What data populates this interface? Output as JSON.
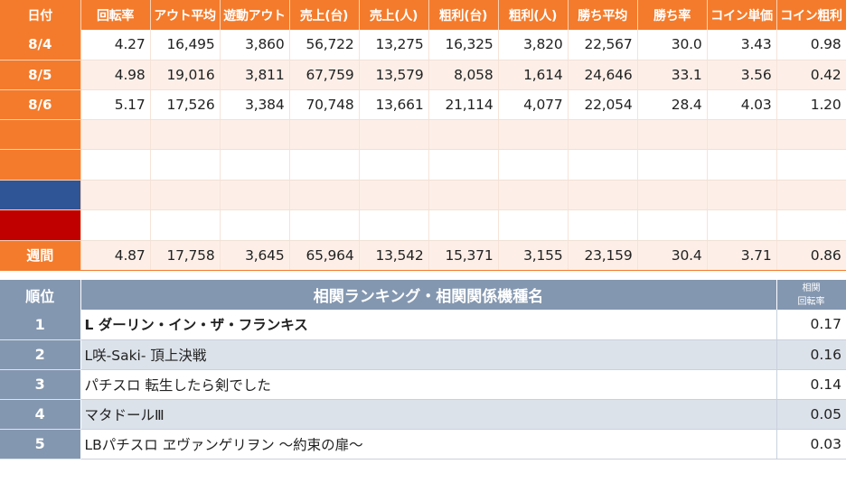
{
  "stats": {
    "headers": [
      "日付",
      "回転率",
      "アウト平均",
      "遊動アウト",
      "売上(台)",
      "売上(人)",
      "粗利(台)",
      "粗利(人)",
      "勝ち平均",
      "勝ち率",
      "コイン単価",
      "コイン粗利"
    ],
    "rows": [
      {
        "label": "8/4",
        "values": [
          "4.27",
          "16,495",
          "3,860",
          "56,722",
          "13,275",
          "16,325",
          "3,820",
          "22,567",
          "30.0",
          "3.43",
          "0.98"
        ]
      },
      {
        "label": "8/5",
        "values": [
          "4.98",
          "19,016",
          "3,811",
          "67,759",
          "13,579",
          "8,058",
          "1,614",
          "24,646",
          "33.1",
          "3.56",
          "0.42"
        ]
      },
      {
        "label": "8/6",
        "values": [
          "5.17",
          "17,526",
          "3,384",
          "70,748",
          "13,661",
          "21,114",
          "4,077",
          "22,054",
          "28.4",
          "4.03",
          "1.20"
        ]
      }
    ],
    "empty_row_colors": [
      "#f47b2b",
      "#f47b2b",
      "#2f5597",
      "#c00000"
    ],
    "total": {
      "label": "週間",
      "values": [
        "4.87",
        "17,758",
        "3,645",
        "65,964",
        "13,542",
        "15,371",
        "3,155",
        "23,159",
        "30.4",
        "3.71",
        "0.86"
      ]
    },
    "accent_color": "#f47b2b"
  },
  "ranking": {
    "header_rank": "順位",
    "header_title": "相関ランキング・相関関係機種名",
    "header_corr_line1": "相関",
    "header_corr_line2": "回転率",
    "rows": [
      {
        "rank": "1",
        "name": "L ダーリン・イン・ザ・フランキス",
        "value": "0.17"
      },
      {
        "rank": "2",
        "name": "L咲-Saki- 頂上決戦",
        "value": "0.16"
      },
      {
        "rank": "3",
        "name": "パチスロ 転生したら剣でした",
        "value": "0.14"
      },
      {
        "rank": "4",
        "name": "マタドールⅢ",
        "value": "0.05"
      },
      {
        "rank": "5",
        "name": "LBパチスロ ヱヴァンゲリヲン ～約束の扉～",
        "value": "0.03"
      }
    ],
    "header_color": "#8497b0"
  }
}
